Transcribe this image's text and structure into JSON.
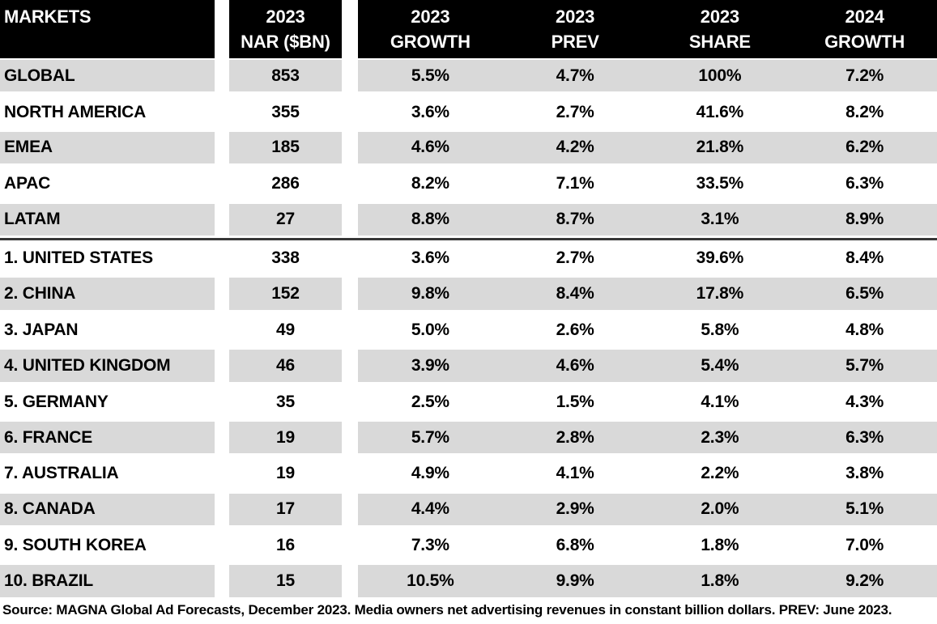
{
  "chart_data": {
    "type": "table",
    "columns": [
      {
        "line1": "MARKETS",
        "line2": ""
      },
      {
        "line1": "2023",
        "line2": "NAR ($BN)"
      },
      {
        "line1": "2023",
        "line2": "GROWTH"
      },
      {
        "line1": "2023",
        "line2": "PREV"
      },
      {
        "line1": "2023",
        "line2": "SHARE"
      },
      {
        "line1": "2024",
        "line2": "GROWTH"
      }
    ],
    "region_rows": [
      {
        "market": "GLOBAL",
        "nar": "853",
        "growth_2023": "5.5%",
        "prev_2023": "4.7%",
        "share_2023": "100%",
        "growth_2024": "7.2%"
      },
      {
        "market": "NORTH AMERICA",
        "nar": "355",
        "growth_2023": "3.6%",
        "prev_2023": "2.7%",
        "share_2023": "41.6%",
        "growth_2024": "8.2%"
      },
      {
        "market": "EMEA",
        "nar": "185",
        "growth_2023": "4.6%",
        "prev_2023": "4.2%",
        "share_2023": "21.8%",
        "growth_2024": "6.2%"
      },
      {
        "market": "APAC",
        "nar": "286",
        "growth_2023": "8.2%",
        "prev_2023": "7.1%",
        "share_2023": "33.5%",
        "growth_2024": "6.3%"
      },
      {
        "market": "LATAM",
        "nar": "27",
        "growth_2023": "8.8%",
        "prev_2023": "8.7%",
        "share_2023": "3.1%",
        "growth_2024": "8.9%"
      }
    ],
    "country_rows": [
      {
        "market": "1. UNITED STATES",
        "nar": "338",
        "growth_2023": "3.6%",
        "prev_2023": "2.7%",
        "share_2023": "39.6%",
        "growth_2024": "8.4%"
      },
      {
        "market": "2. CHINA",
        "nar": "152",
        "growth_2023": "9.8%",
        "prev_2023": "8.4%",
        "share_2023": "17.8%",
        "growth_2024": "6.5%"
      },
      {
        "market": "3. JAPAN",
        "nar": "49",
        "growth_2023": "5.0%",
        "prev_2023": "2.6%",
        "share_2023": "5.8%",
        "growth_2024": "4.8%"
      },
      {
        "market": "4. UNITED KINGDOM",
        "nar": "46",
        "growth_2023": "3.9%",
        "prev_2023": "4.6%",
        "share_2023": "5.4%",
        "growth_2024": "5.7%"
      },
      {
        "market": "5. GERMANY",
        "nar": "35",
        "growth_2023": "2.5%",
        "prev_2023": "1.5%",
        "share_2023": "4.1%",
        "growth_2024": "4.3%"
      },
      {
        "market": "6. FRANCE",
        "nar": "19",
        "growth_2023": "5.7%",
        "prev_2023": "2.8%",
        "share_2023": "2.3%",
        "growth_2024": "6.3%"
      },
      {
        "market": "7. AUSTRALIA",
        "nar": "19",
        "growth_2023": "4.9%",
        "prev_2023": "4.1%",
        "share_2023": "2.2%",
        "growth_2024": "3.8%"
      },
      {
        "market": "8. CANADA",
        "nar": "17",
        "growth_2023": "4.4%",
        "prev_2023": "2.9%",
        "share_2023": "2.0%",
        "growth_2024": "5.1%"
      },
      {
        "market": "9. SOUTH KOREA",
        "nar": "16",
        "growth_2023": "7.3%",
        "prev_2023": "6.8%",
        "share_2023": "1.8%",
        "growth_2024": "7.0%"
      },
      {
        "market": "10. BRAZIL",
        "nar": "15",
        "growth_2023": "10.5%",
        "prev_2023": "9.9%",
        "share_2023": "1.8%",
        "growth_2024": "9.2%"
      }
    ],
    "layout": {
      "stripe_color": "#d9d9d9",
      "header_bg": "#000000",
      "header_text_color": "#ffffff",
      "divider_color": "#383838",
      "body_text_color": "#000000",
      "striped_region_rows": [
        0,
        2,
        4
      ],
      "striped_country_rows": [
        1,
        3,
        5,
        7,
        9
      ]
    }
  },
  "footer": {
    "source_text": "Source: MAGNA Global Ad Forecasts, December 2023. Media owners net advertising revenues in constant billion dollars. PREV: June 2023."
  }
}
